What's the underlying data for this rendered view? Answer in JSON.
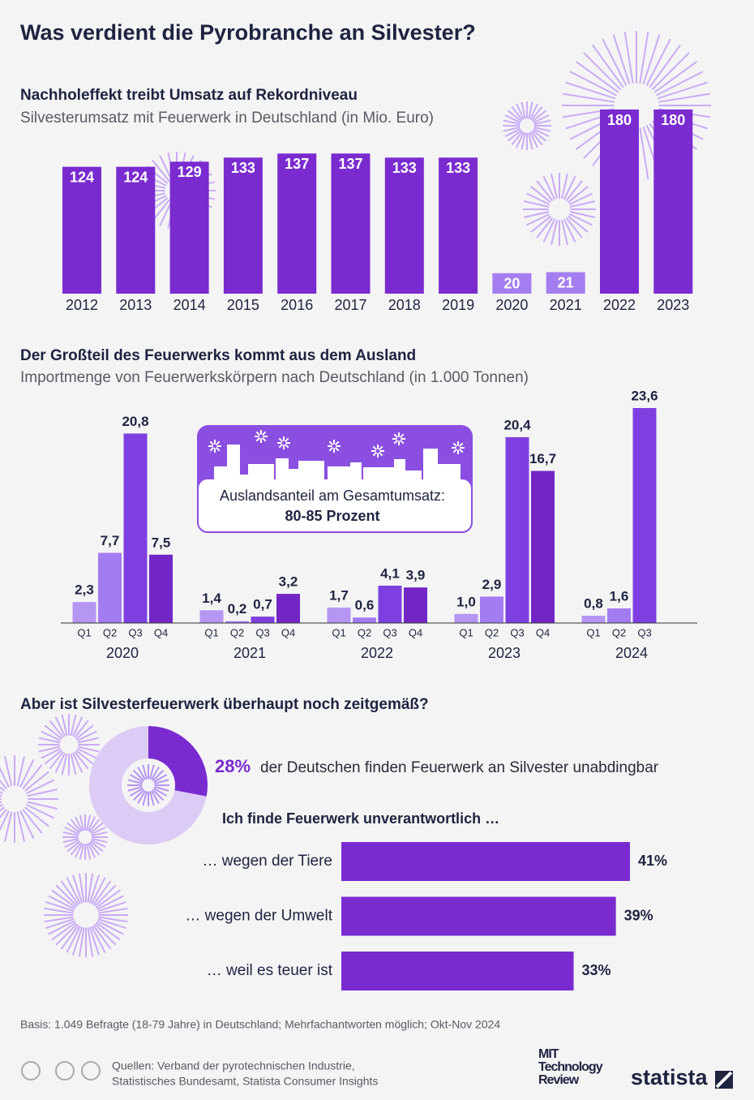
{
  "header": {
    "title": "Was verdient die Pyrobranche an Silvester?"
  },
  "chart_data": [
    {
      "type": "bar",
      "title": "Nachholeffekt treibt Umsatz auf Rekordniveau",
      "subtitle": "Silvesterumsatz mit Feuerwerk in Deutschland (in Mio. Euro)",
      "categories": [
        "2012",
        "2013",
        "2014",
        "2015",
        "2016",
        "2017",
        "2018",
        "2019",
        "2020",
        "2021",
        "2022",
        "2023"
      ],
      "values": [
        124,
        124,
        129,
        133,
        137,
        137,
        133,
        133,
        20,
        21,
        180,
        180
      ],
      "colors": [
        "#7a2bd0",
        "#7a2bd0",
        "#7a2bd0",
        "#7a2bd0",
        "#7a2bd0",
        "#7a2bd0",
        "#7a2bd0",
        "#7a2bd0",
        "#a47ef0",
        "#a47ef0",
        "#7a2bd0",
        "#7a2bd0"
      ]
    },
    {
      "type": "grouped_bar",
      "title": "Der Großteil des Feuerwerks kommt aus dem Ausland",
      "subtitle": "Importmenge von Feuerwerkskörpern nach Deutschland (in 1.000 Tonnen)",
      "categories": [
        "2020",
        "2021",
        "2022",
        "2023",
        "2024"
      ],
      "series": [
        {
          "name": "Q1",
          "color": "#b596f3",
          "values": [
            2.3,
            1.4,
            1.7,
            1.0,
            0.8
          ],
          "value_labels": [
            "2,3",
            "1,4",
            "1,7",
            "1,0",
            "0,8"
          ]
        },
        {
          "name": "Q2",
          "color": "#a27cf0",
          "values": [
            7.7,
            0.2,
            0.6,
            2.9,
            1.6
          ],
          "value_labels": [
            "7,7",
            "0,2",
            "0,6",
            "2,9",
            "1,6"
          ]
        },
        {
          "name": "Q3",
          "color": "#7e3fe0",
          "values": [
            20.8,
            0.7,
            4.1,
            20.4,
            23.6
          ],
          "value_labels": [
            "20,8",
            "0,7",
            "4,1",
            "20,4",
            "23,6"
          ]
        },
        {
          "name": "Q4",
          "color": "#7226c6",
          "values": [
            7.5,
            3.2,
            3.9,
            16.7,
            null
          ],
          "value_labels": [
            "7,5",
            "3,2",
            "3,9",
            "16,7",
            null
          ]
        }
      ],
      "annotation": {
        "text": "Auslandsanteil am Gesamtumsatz:",
        "value": "80-85 Prozent"
      }
    },
    {
      "type": "donut",
      "title": "Aber ist Silvesterfeuerwerk überhaupt noch zeitgemäß?",
      "values": [
        28
      ],
      "value_labels": [
        "28%"
      ],
      "text": "der Deutschen finden Feuerwerk an Silvester unabdingbar",
      "color": "#7a2bd0"
    },
    {
      "type": "hbar",
      "title": "Ich finde Feuerwerk unverantwortlich …",
      "categories": [
        "… wegen der Tiere",
        "… wegen der Umwelt",
        "… weil es teuer ist"
      ],
      "values": [
        41,
        39,
        33
      ],
      "value_labels": [
        "41%",
        "39%",
        "33%"
      ],
      "color": "#7a2bd0"
    }
  ],
  "footer": {
    "note": "Basis: 1.049 Befragte (18-79 Jahre) in Deutschland; Mehrfachantworten möglich; Okt-Nov 2024",
    "sources": [
      "Quellen: Verband der pyrotechnischen Industrie,",
      "Statistisches Bundesamt, Statista Consumer Insights"
    ],
    "partner": [
      "MIT",
      "Technology",
      "Review"
    ],
    "brand": "statista"
  }
}
